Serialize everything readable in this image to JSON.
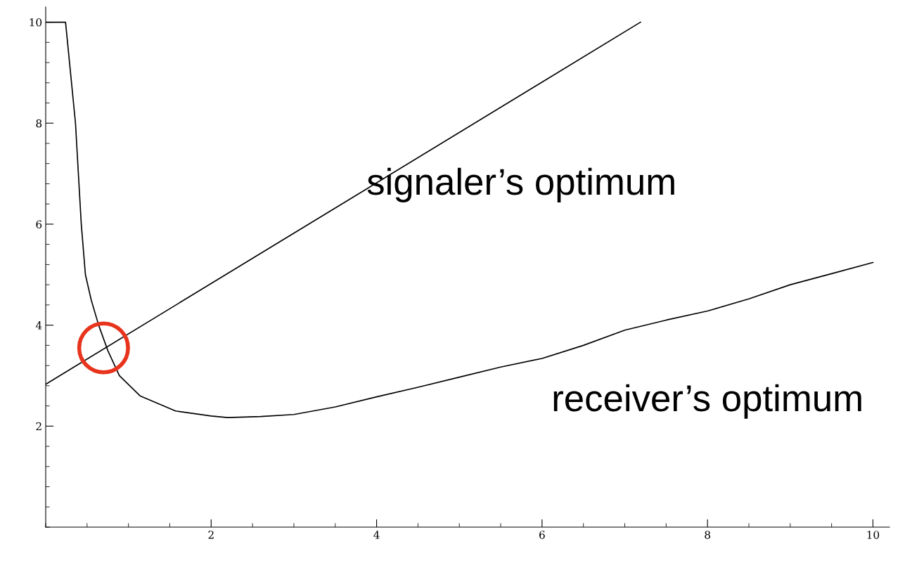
{
  "chart_data": {
    "type": "line",
    "series": [
      {
        "name": "signaler’s optimum",
        "color": "#000000",
        "x": [
          0,
          7.19
        ],
        "values": [
          2.83,
          10
        ]
      },
      {
        "name": "receiver’s optimum",
        "color": "#000000",
        "x": [
          0,
          0.24,
          0.3,
          0.36,
          0.43,
          0.48,
          0.55,
          0.64,
          0.75,
          0.89,
          1.14,
          1.57,
          2.0,
          2.2,
          2.6,
          3.0,
          3.5,
          4.0,
          4.5,
          5.0,
          5.5,
          6.0,
          6.5,
          7.0,
          7.5,
          8.0,
          8.5,
          9.0,
          9.5,
          10.0
        ],
        "values": [
          10,
          10,
          9.0,
          8,
          6,
          5,
          4.5,
          4,
          3.5,
          3,
          2.6,
          2.3,
          2.2,
          2.17,
          2.19,
          2.23,
          2.38,
          2.58,
          2.77,
          2.97,
          3.17,
          3.34,
          3.6,
          3.9,
          4.1,
          4.28,
          4.52,
          4.8,
          5.02,
          5.24
        ]
      },
      {
        "type": "scatter",
        "color": "#e8341c",
        "marker": "circle",
        "x": [
          0.7
        ],
        "values": [
          3.55
        ]
      }
    ],
    "xlim": [
      0,
      10.2
    ],
    "ylim": [
      0,
      10.3
    ],
    "xticks": [
      2,
      4,
      6,
      8,
      10
    ],
    "yticks": [
      2,
      4,
      6,
      8,
      10
    ],
    "grid": false
  }
}
